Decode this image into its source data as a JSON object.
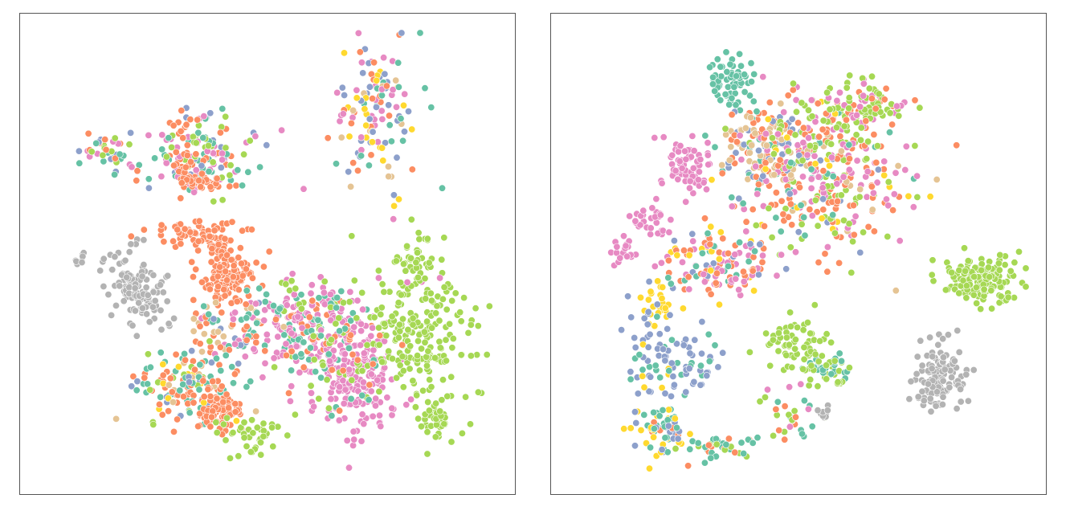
{
  "chart_data": [
    {
      "type": "scatter",
      "title": "",
      "xlabel": "",
      "ylabel": "",
      "xlim": [
        0,
        100
      ],
      "ylim": [
        0,
        100
      ],
      "grid": false,
      "legend": "none",
      "palette": {
        "teal": "#66c2a5",
        "orange": "#fc8d62",
        "blue": "#8da0cb",
        "pink": "#e78ac3",
        "green": "#a6d854",
        "yellow": "#ffd92f",
        "tan": "#e5c494",
        "gray": "#b3b3b3"
      },
      "clusters": [
        {
          "cx": 74,
          "cy": 82,
          "sx": 5,
          "sy": 9,
          "n": 130,
          "mix": {
            "blue": 3,
            "pink": 3,
            "yellow": 2,
            "teal": 2,
            "orange": 1,
            "tan": 1
          }
        },
        {
          "cx": 35,
          "cy": 72,
          "sx": 6,
          "sy": 4.5,
          "n": 150,
          "mix": {
            "pink": 3,
            "teal": 2,
            "green": 2,
            "blue": 2,
            "orange": 2
          }
        },
        {
          "cx": 32,
          "cy": 79,
          "sx": 2,
          "sy": 1,
          "n": 12,
          "mix": {
            "orange": 1
          }
        },
        {
          "cx": 35,
          "cy": 66,
          "sx": 3,
          "sy": 1,
          "n": 30,
          "mix": {
            "orange": 1
          }
        },
        {
          "cx": 36,
          "cy": 76,
          "sx": 1.5,
          "sy": 1,
          "n": 10,
          "mix": {
            "teal": 1,
            "green": 1
          }
        },
        {
          "cx": 33,
          "cy": 55,
          "sx": 5,
          "sy": 1.4,
          "n": 45,
          "mix": {
            "orange": 1
          }
        },
        {
          "cx": 38,
          "cy": 52,
          "sx": 2.2,
          "sy": 1.4,
          "n": 35,
          "mix": {
            "orange": 1
          }
        },
        {
          "cx": 15,
          "cy": 73,
          "sx": 3,
          "sy": 2,
          "n": 40,
          "mix": {
            "teal": 2,
            "blue": 2,
            "orange": 2,
            "green": 1,
            "pink": 1
          }
        },
        {
          "cx": 32,
          "cy": 69,
          "sx": 1,
          "sy": 4,
          "n": 20,
          "mix": {
            "orange": 1
          }
        },
        {
          "cx": 9,
          "cy": 49,
          "sx": 0.8,
          "sy": 0.6,
          "n": 8,
          "mix": {
            "gray": 1
          }
        },
        {
          "cx": 20,
          "cy": 44,
          "sx": 3.5,
          "sy": 3.5,
          "n": 90,
          "mix": {
            "gray": 1
          }
        },
        {
          "cx": 24,
          "cy": 38,
          "sx": 3,
          "sy": 3,
          "n": 40,
          "mix": {
            "gray": 1
          }
        },
        {
          "cx": 41,
          "cy": 45,
          "sx": 3.5,
          "sy": 3,
          "n": 120,
          "mix": {
            "orange": 1
          }
        },
        {
          "cx": 58,
          "cy": 34,
          "sx": 6,
          "sy": 6,
          "n": 200,
          "mix": {
            "pink": 5,
            "teal": 2,
            "orange": 1,
            "green": 1
          }
        },
        {
          "cx": 42,
          "cy": 33,
          "sx": 6,
          "sy": 4,
          "n": 80,
          "mix": {
            "teal": 2,
            "orange": 2,
            "pink": 2,
            "tan": 2,
            "blue": 1
          }
        },
        {
          "cx": 33,
          "cy": 20,
          "sx": 5,
          "sy": 4,
          "n": 140,
          "mix": {
            "teal": 3,
            "orange": 3,
            "green": 1,
            "yellow": 1,
            "blue": 1,
            "tan": 1
          }
        },
        {
          "cx": 39,
          "cy": 14,
          "sx": 2.5,
          "sy": 2.5,
          "n": 90,
          "mix": {
            "orange": 1
          }
        },
        {
          "cx": 47,
          "cy": 9,
          "sx": 4,
          "sy": 3,
          "n": 40,
          "mix": {
            "green": 1
          }
        },
        {
          "cx": 70,
          "cy": 22,
          "sx": 4,
          "sy": 7,
          "n": 200,
          "mix": {
            "pink": 1
          }
        },
        {
          "cx": 84,
          "cy": 32,
          "sx": 6,
          "sy": 7,
          "n": 200,
          "mix": {
            "green": 1
          }
        },
        {
          "cx": 87,
          "cy": 12,
          "sx": 2,
          "sy": 2.5,
          "n": 45,
          "mix": {
            "green": 1
          }
        },
        {
          "cx": 83,
          "cy": 48,
          "sx": 3,
          "sy": 4,
          "n": 40,
          "mix": {
            "green": 3,
            "pink": 1
          }
        },
        {
          "cx": 66,
          "cy": 28,
          "sx": 5,
          "sy": 8,
          "n": 70,
          "mix": {
            "orange": 1,
            "green": 1,
            "teal": 1
          }
        }
      ]
    },
    {
      "type": "scatter",
      "title": "",
      "xlabel": "",
      "ylabel": "",
      "xlim": [
        0,
        100
      ],
      "ylim": [
        0,
        100
      ],
      "grid": false,
      "legend": "none",
      "palette": {
        "teal": "#66c2a5",
        "orange": "#fc8d62",
        "blue": "#8da0cb",
        "pink": "#e78ac3",
        "green": "#a6d854",
        "yellow": "#ffd92f",
        "tan": "#e5c494",
        "gray": "#b3b3b3"
      },
      "clusters": [
        {
          "cx": 35,
          "cy": 88,
          "sx": 2.5,
          "sy": 3,
          "n": 60,
          "mix": {
            "teal": 1
          }
        },
        {
          "cx": 43,
          "cy": 75,
          "sx": 5,
          "sy": 4,
          "n": 120,
          "mix": {
            "tan": 2,
            "orange": 2,
            "teal": 1,
            "blue": 1
          }
        },
        {
          "cx": 55,
          "cy": 68,
          "sx": 10,
          "sy": 8,
          "n": 380,
          "mix": {
            "orange": 4,
            "pink": 3,
            "green": 3,
            "teal": 1,
            "blue": 1,
            "tan": 1,
            "yellow": 1
          }
        },
        {
          "cx": 63,
          "cy": 83,
          "sx": 6,
          "sy": 3,
          "n": 110,
          "mix": {
            "green": 3,
            "pink": 2,
            "orange": 1
          }
        },
        {
          "cx": 26,
          "cy": 70,
          "sx": 3,
          "sy": 3,
          "n": 70,
          "mix": {
            "pink": 1
          }
        },
        {
          "cx": 11,
          "cy": 51,
          "sx": 1.5,
          "sy": 1.5,
          "n": 20,
          "mix": {
            "pink": 1
          }
        },
        {
          "cx": 18,
          "cy": 58,
          "sx": 2,
          "sy": 2,
          "n": 30,
          "mix": {
            "pink": 1
          }
        },
        {
          "cx": 32,
          "cy": 48,
          "sx": 6,
          "sy": 4,
          "n": 130,
          "mix": {
            "pink": 3,
            "orange": 3,
            "blue": 1,
            "yellow": 1,
            "teal": 1
          }
        },
        {
          "cx": 20,
          "cy": 38,
          "sx": 2,
          "sy": 3,
          "n": 25,
          "mix": {
            "yellow": 1
          }
        },
        {
          "cx": 18,
          "cy": 30,
          "sx": 3,
          "sy": 9,
          "n": 70,
          "mix": {
            "blue": 3,
            "teal": 1,
            "yellow": 1
          }
        },
        {
          "cx": 27,
          "cy": 24,
          "sx": 3,
          "sy": 4,
          "n": 40,
          "mix": {
            "blue": 2,
            "teal": 1
          }
        },
        {
          "cx": 21,
          "cy": 10,
          "sx": 3,
          "sy": 3,
          "n": 60,
          "mix": {
            "teal": 3,
            "blue": 2,
            "yellow": 2,
            "orange": 1
          }
        },
        {
          "cx": 32,
          "cy": 6,
          "sx": 4,
          "sy": 1.5,
          "n": 40,
          "mix": {
            "teal": 2,
            "green": 2,
            "orange": 1
          }
        },
        {
          "cx": 50,
          "cy": 30,
          "sx": 4,
          "sy": 3,
          "n": 60,
          "mix": {
            "green": 1
          }
        },
        {
          "cx": 48,
          "cy": 14,
          "sx": 4,
          "sy": 3,
          "n": 30,
          "mix": {
            "teal": 2,
            "orange": 2,
            "green": 1,
            "pink": 1
          }
        },
        {
          "cx": 56,
          "cy": 24,
          "sx": 3,
          "sy": 2,
          "n": 50,
          "mix": {
            "teal": 1,
            "green": 1
          }
        },
        {
          "cx": 90,
          "cy": 44,
          "sx": 4.5,
          "sy": 2.5,
          "n": 160,
          "mix": {
            "green": 1
          }
        },
        {
          "cx": 81,
          "cy": 22,
          "sx": 3,
          "sy": 4,
          "n": 120,
          "mix": {
            "gray": 1
          }
        },
        {
          "cx": 56,
          "cy": 14,
          "sx": 1,
          "sy": 0.8,
          "n": 10,
          "mix": {
            "gray": 1
          }
        },
        {
          "cx": 59,
          "cy": 21,
          "sx": 0.5,
          "sy": 0.5,
          "n": 5,
          "mix": {
            "green": 1
          }
        }
      ]
    }
  ]
}
